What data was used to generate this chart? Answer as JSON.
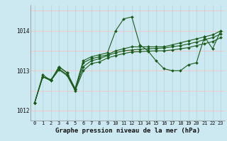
{
  "title": "Graphe pression niveau de la mer (hPa)",
  "background_color": "#cce8f0",
  "grid_color_v": "#aad4e0",
  "grid_color_h": "#ffaaaa",
  "line_color": "#1a5c1a",
  "ylim": [
    1011.75,
    1014.65
  ],
  "yticks": [
    1012,
    1013,
    1014
  ],
  "series": [
    [
      1012.2,
      1012.85,
      1012.75,
      1013.1,
      1012.95,
      1012.55,
      1013.25,
      1013.35,
      1013.4,
      1013.45,
      1014.0,
      1014.3,
      1014.35,
      1013.65,
      1013.5,
      1013.25,
      1013.05,
      1013.0,
      1013.0,
      1013.15,
      1013.2,
      1013.85,
      1013.55,
      1014.0
    ],
    [
      1012.2,
      1012.9,
      1012.75,
      1013.1,
      1012.95,
      1012.55,
      1013.2,
      1013.3,
      1013.35,
      1013.4,
      1013.5,
      1013.55,
      1013.6,
      1013.6,
      1013.6,
      1013.6,
      1013.6,
      1013.65,
      1013.7,
      1013.75,
      1013.8,
      1013.85,
      1013.9,
      1014.0
    ],
    [
      1012.2,
      1012.85,
      1012.78,
      1013.05,
      1012.9,
      1012.52,
      1013.1,
      1013.25,
      1013.3,
      1013.38,
      1013.45,
      1013.5,
      1013.52,
      1013.54,
      1013.55,
      1013.56,
      1013.57,
      1013.6,
      1013.63,
      1013.67,
      1013.72,
      1013.78,
      1013.83,
      1013.92
    ],
    [
      1012.2,
      1012.85,
      1012.75,
      1013.02,
      1012.88,
      1012.5,
      1013.0,
      1013.18,
      1013.22,
      1013.32,
      1013.38,
      1013.43,
      1013.47,
      1013.48,
      1013.49,
      1013.5,
      1013.5,
      1013.52,
      1013.55,
      1013.58,
      1013.63,
      1013.68,
      1013.73,
      1013.83
    ]
  ],
  "markersize": 2.0,
  "linewidth": 0.8,
  "ylabel_fontsize": 5.5,
  "xlabel_fontsize": 6.5,
  "tick_fontsize": 5.0
}
